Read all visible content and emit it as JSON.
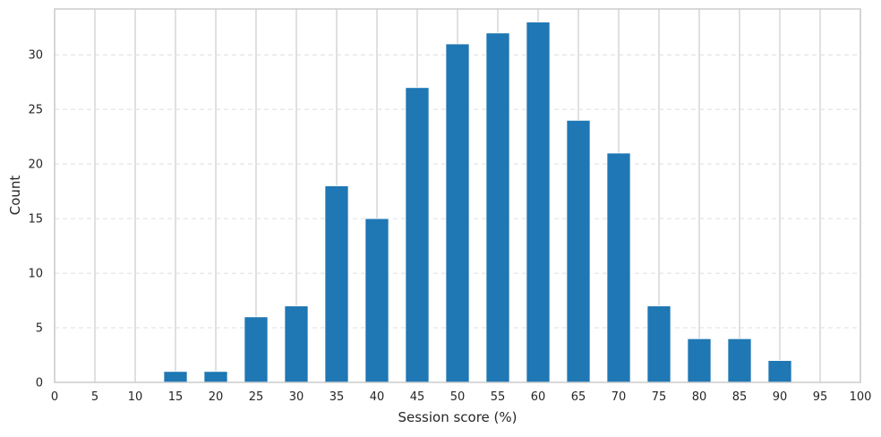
{
  "chart_data": {
    "type": "bar",
    "xlabel": "Session score (%)",
    "ylabel": "Count",
    "xlim": [
      0,
      100
    ],
    "ylim": [
      0,
      34.2
    ],
    "bin_width": 5,
    "bar_width": 2.9,
    "xticks": [
      0,
      5,
      10,
      15,
      20,
      25,
      30,
      35,
      40,
      45,
      50,
      55,
      60,
      65,
      70,
      75,
      80,
      85,
      90,
      95,
      100
    ],
    "yticks": [
      0,
      5,
      10,
      15,
      20,
      25,
      30
    ],
    "x": [
      5,
      10,
      15,
      20,
      25,
      30,
      35,
      40,
      45,
      50,
      55,
      60,
      65,
      70,
      75,
      80,
      85,
      90,
      95
    ],
    "values": [
      0,
      0,
      1,
      1,
      6,
      7,
      18,
      15,
      27,
      31,
      32,
      33,
      24,
      21,
      7,
      4,
      4,
      2,
      0
    ],
    "colors": {
      "bar": "#1f77b4",
      "vgrid": "#d0d0d0",
      "hgrid": "#dedede",
      "spine": "#cccccc",
      "text": "#262626"
    },
    "grid": {
      "x": "solid",
      "y": "dashed"
    }
  }
}
